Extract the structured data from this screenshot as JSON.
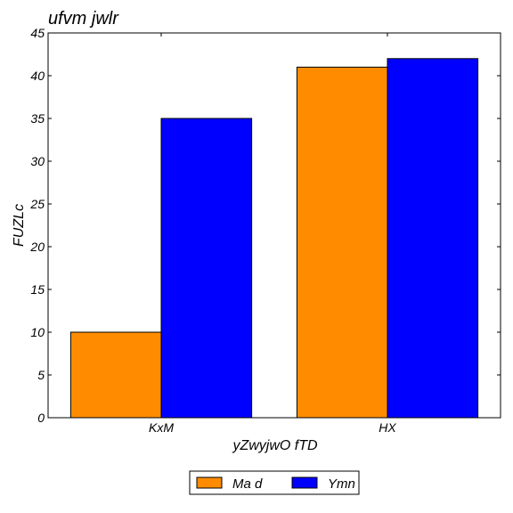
{
  "chart_data": {
    "type": "bar",
    "title": "ufvm jwlr",
    "xlabel": "yZwyjwO fTD",
    "ylabel": "FUZLc",
    "categories": [
      "KxM",
      "HX"
    ],
    "series": [
      {
        "name": "Ma d",
        "values": [
          10,
          41
        ],
        "color": "#ff8c00"
      },
      {
        "name": "Ymn",
        "values": [
          35,
          42
        ],
        "color": "#0000ff"
      }
    ],
    "ylim": [
      0,
      45
    ],
    "yticks": [
      0,
      5,
      10,
      15,
      20,
      25,
      30,
      35,
      40,
      45
    ],
    "grid": false,
    "legend_position": "bottom-center"
  }
}
